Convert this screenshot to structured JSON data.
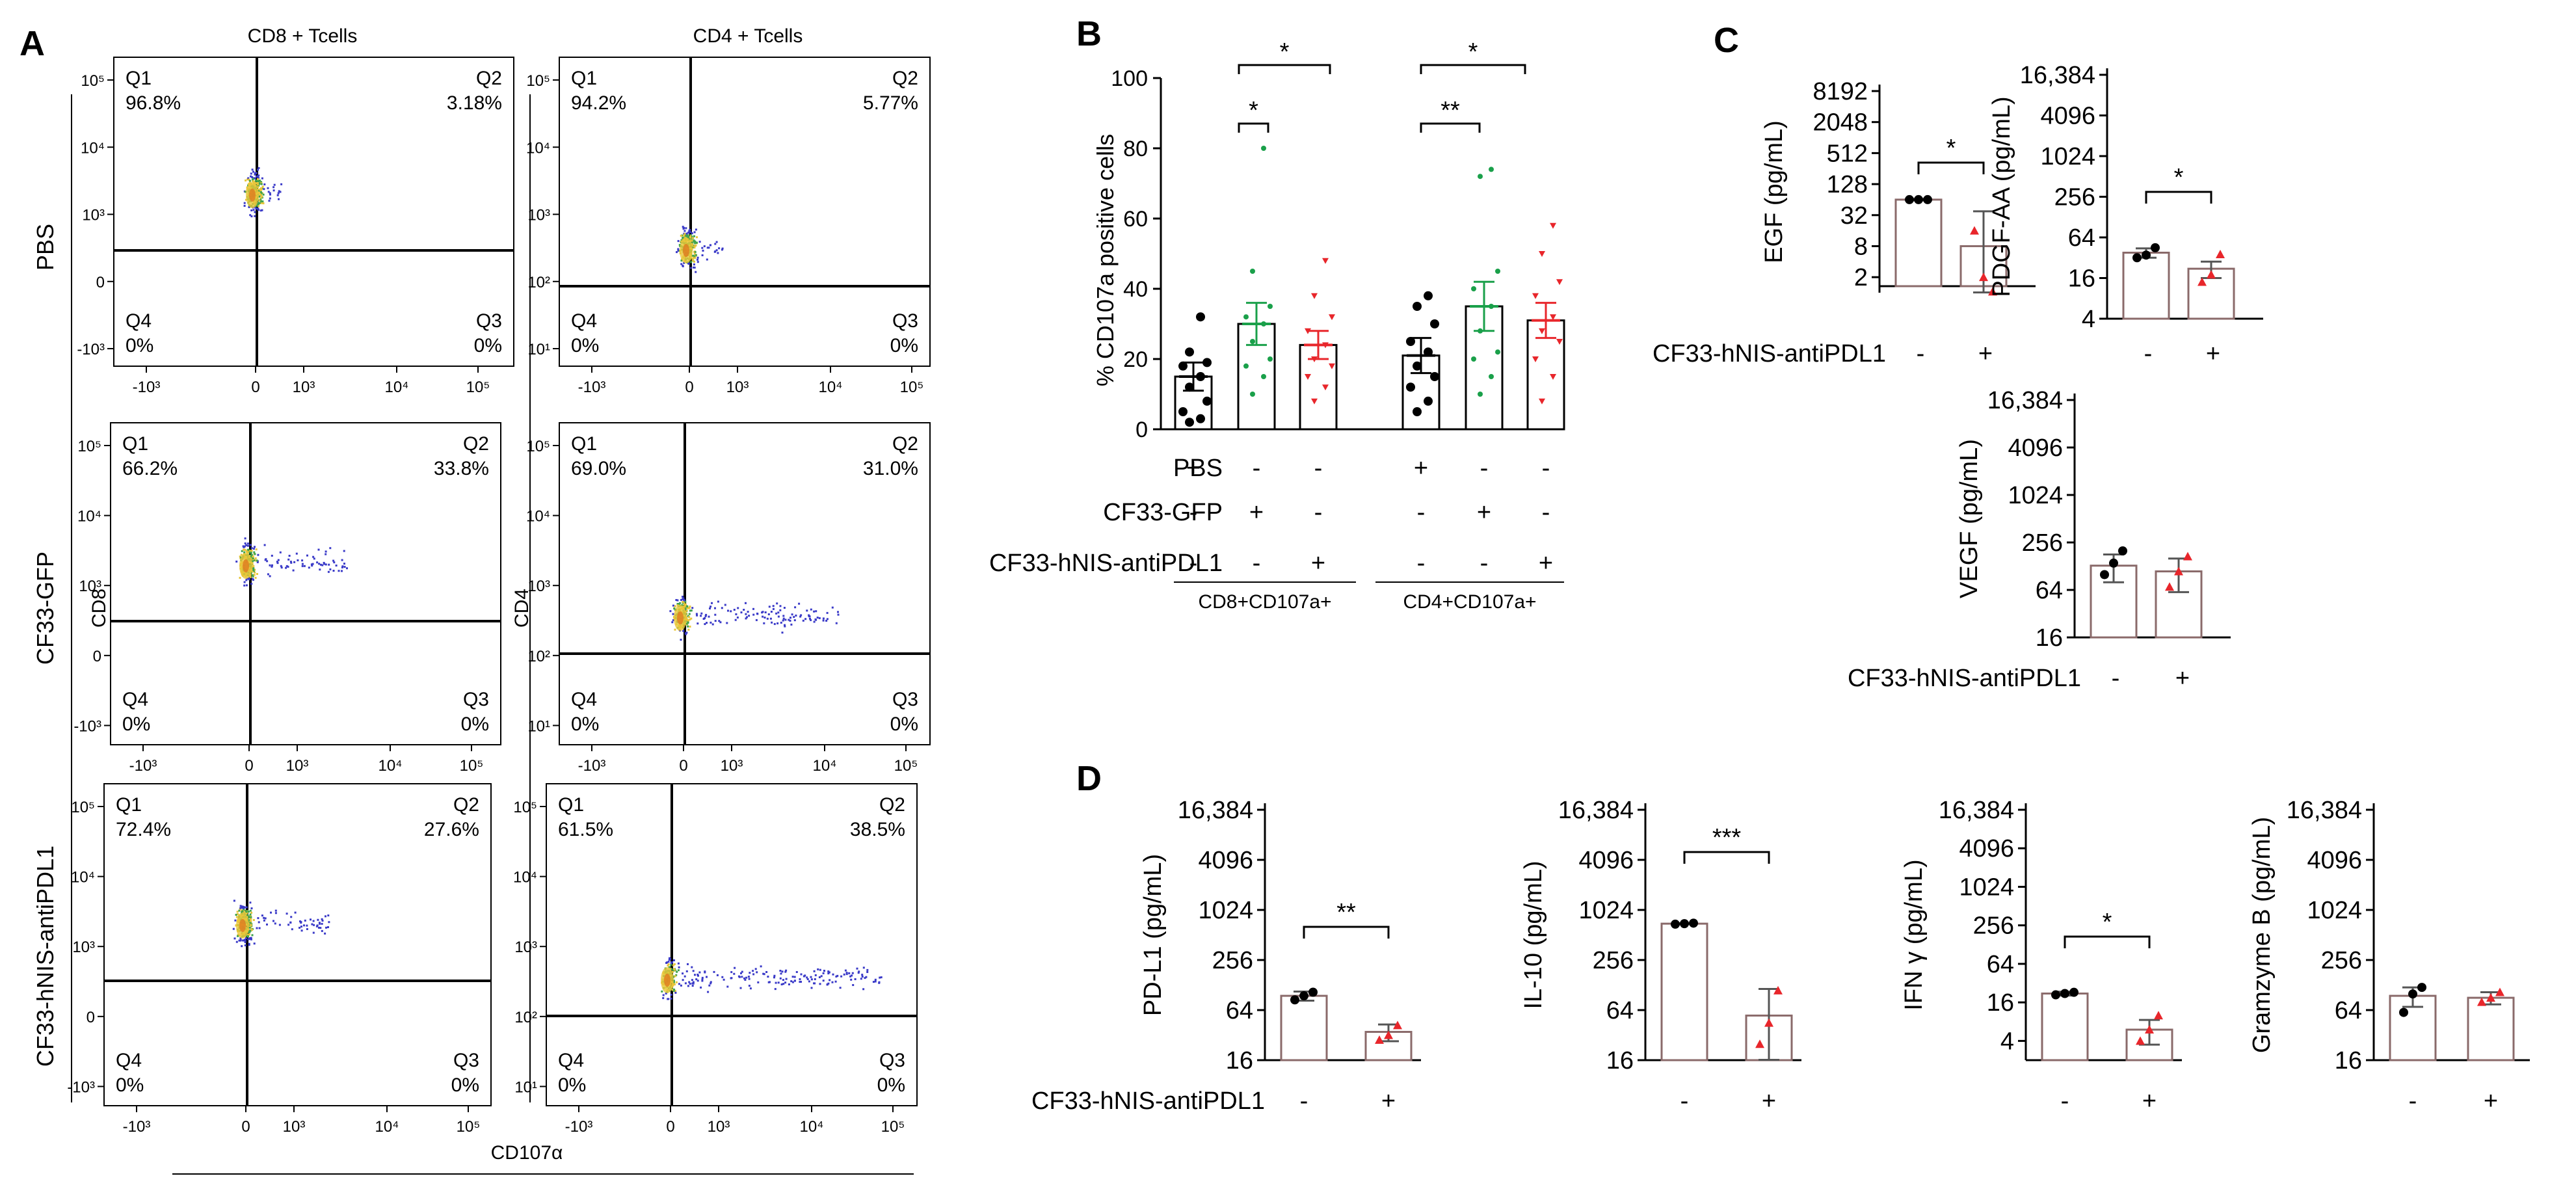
{
  "panels": {
    "A": "A",
    "B": "B",
    "C": "C",
    "D": "D"
  },
  "panel_a": {
    "col_titles": [
      "CD8 + Tcells",
      "CD4 + Tcells"
    ],
    "row_labels": [
      "PBS",
      "CF33-GFP",
      "CF33-hNIS-antiPDL1"
    ],
    "y_labels": [
      "CD8",
      "CD4"
    ],
    "x_label": "CD107α",
    "quadrant_names": [
      "Q1",
      "Q2",
      "Q3",
      "Q4"
    ],
    "cd8_y_ticks": [
      "10⁵",
      "10⁴",
      "10³",
      "0",
      "-10³"
    ],
    "cd4_y_ticks": [
      "10⁵",
      "10⁴",
      "10³",
      "10²",
      "10¹"
    ],
    "cd8_x_ticks": [
      "-10³",
      "0",
      "10³",
      "10⁴",
      "10⁵"
    ],
    "cd4_x_ticks": [
      "-10³",
      "0",
      "10³",
      "10⁴",
      "10⁵"
    ],
    "plots": [
      {
        "name": "cd8-pbs",
        "q1": "96.8%",
        "q2": "3.18%",
        "q3": "0%",
        "q4": "0%"
      },
      {
        "name": "cd4-pbs",
        "q1": "94.2%",
        "q2": "5.77%",
        "q3": "0%",
        "q4": "0%"
      },
      {
        "name": "cd8-cf33gfp",
        "q1": "66.2%",
        "q2": "33.8%",
        "q3": "0%",
        "q4": "0%"
      },
      {
        "name": "cd4-cf33gfp",
        "q1": "69.0%",
        "q2": "31.0%",
        "q3": "0%",
        "q4": "0%"
      },
      {
        "name": "cd8-cf33hnis",
        "q1": "72.4%",
        "q2": "27.6%",
        "q3": "0%",
        "q4": "0%"
      },
      {
        "name": "cd4-cf33hnis",
        "q1": "61.5%",
        "q2": "38.5%",
        "q3": "0%",
        "q4": "0%"
      }
    ]
  },
  "colors": {
    "pbs": "#000000",
    "gfp": "#1aa04a",
    "hnis": "#e8262b",
    "bar_edge": "#8a6a6a",
    "cap": "#555555"
  },
  "panel_b": {
    "y_label": "% CD107a positive cells",
    "row_labels": [
      "PBS",
      "CF33-GFP",
      "CF33-hNIS-antiPDL1"
    ],
    "signs": [
      [
        "+",
        "-",
        "-",
        "+",
        "-",
        "-"
      ],
      [
        "-",
        "+",
        "-",
        "-",
        "+",
        "-"
      ],
      [
        "-",
        "-",
        "+",
        "-",
        "-",
        "+"
      ]
    ],
    "group_labels": [
      "CD8+CD107a+",
      "CD4+CD107a+"
    ],
    "sig": [
      "*",
      "*",
      "*",
      "**"
    ]
  },
  "panel_c": {
    "x_label": "CF33-hNIS-antiPDL1",
    "signs": [
      "-",
      "+"
    ],
    "egf": {
      "y_label": "EGF (pg/mL)",
      "ticks": [
        "8192",
        "2048",
        "512",
        "128",
        "32",
        "8",
        "2"
      ],
      "sig": "*"
    },
    "pdgf": {
      "y_label": "PDGF-AA (pg/mL)",
      "ticks": [
        "16,384",
        "4096",
        "1024",
        "256",
        "64",
        "16",
        "4"
      ],
      "sig": "*"
    },
    "vegf": {
      "y_label": "VEGF (pg/mL)",
      "ticks": [
        "16,384",
        "4096",
        "1024",
        "256",
        "64",
        "16"
      ]
    }
  },
  "panel_d": {
    "x_label": "CF33-hNIS-antiPDL1",
    "signs": [
      "-",
      "+"
    ],
    "pdl1": {
      "y_label": "PD-L1 (pg/mL)",
      "ticks": [
        "16,384",
        "4096",
        "1024",
        "256",
        "64",
        "16"
      ],
      "sig": "**"
    },
    "il10": {
      "y_label": "IL-10 (pg/mL)",
      "ticks": [
        "16,384",
        "4096",
        "1024",
        "256",
        "64",
        "16"
      ],
      "sig": "***"
    },
    "ifng": {
      "y_label": "IFN γ (pg/mL)",
      "ticks": [
        "16,384",
        "4096",
        "1024",
        "256",
        "64",
        "16",
        "4"
      ],
      "sig": "*"
    },
    "gzmb": {
      "y_label": "Gramzyme B (pg/mL)",
      "ticks": [
        "16,384",
        "4096",
        "1024",
        "256",
        "64",
        "16"
      ]
    }
  },
  "chart_data": [
    {
      "type": "bar",
      "title": "% CD107a positive cells",
      "ylabel": "% CD107a positive cells",
      "ylim": [
        0,
        100
      ],
      "y_ticks": [
        0,
        20,
        40,
        60,
        80,
        100
      ],
      "categories": [
        "CD8 PBS",
        "CD8 CF33-GFP",
        "CD8 CF33-hNIS-antiPDL1",
        "CD4 PBS",
        "CD4 CF33-GFP",
        "CD4 CF33-hNIS-antiPDL1"
      ],
      "values": [
        15,
        30,
        24,
        21,
        35,
        31
      ],
      "errors": [
        4,
        6,
        4,
        5,
        7,
        5
      ],
      "points": [
        [
          2,
          3,
          5,
          8,
          12,
          15,
          18,
          19,
          22,
          32
        ],
        [
          10,
          15,
          18,
          20,
          25,
          30,
          32,
          35,
          45,
          80
        ],
        [
          8,
          12,
          15,
          18,
          20,
          24,
          28,
          32,
          38,
          48
        ],
        [
          5,
          8,
          12,
          15,
          18,
          22,
          25,
          30,
          35,
          38
        ],
        [
          10,
          15,
          20,
          22,
          28,
          35,
          40,
          45,
          72,
          74
        ],
        [
          8,
          15,
          20,
          25,
          28,
          32,
          38,
          42,
          50,
          58
        ]
      ],
      "point_colors": [
        "pbs",
        "gfp",
        "hnis",
        "pbs",
        "gfp",
        "hnis"
      ]
    },
    {
      "type": "bar",
      "title": "EGF",
      "ylabel": "EGF (pg/mL)",
      "scale": "log2",
      "ylim": [
        1,
        8192
      ],
      "categories": [
        "-",
        "+"
      ],
      "values": [
        64,
        8
      ],
      "errors": [
        2,
        30
      ],
      "points": [
        [
          64,
          64,
          64
        ],
        [
          16,
          2,
          1
        ]
      ]
    },
    {
      "type": "bar",
      "title": "PDGF-AA",
      "ylabel": "PDGF-AA (pg/mL)",
      "scale": "log2",
      "ylim": [
        4,
        16384
      ],
      "categories": [
        "-",
        "+"
      ],
      "values": [
        38,
        22
      ],
      "errors": [
        6,
        6
      ],
      "points": [
        [
          32,
          35,
          45
        ],
        [
          14,
          18,
          36
        ]
      ]
    },
    {
      "type": "bar",
      "title": "VEGF",
      "ylabel": "VEGF (pg/mL)",
      "scale": "log2",
      "ylim": [
        16,
        16384
      ],
      "categories": [
        "-",
        "+"
      ],
      "values": [
        130,
        110
      ],
      "errors": [
        50,
        50
      ],
      "points": [
        [
          100,
          140,
          200
        ],
        [
          70,
          110,
          170
        ]
      ]
    },
    {
      "type": "bar",
      "title": "PD-L1",
      "ylabel": "PD-L1 (pg/mL)",
      "scale": "log2",
      "ylim": [
        16,
        16384
      ],
      "categories": [
        "-",
        "+"
      ],
      "values": [
        95,
        35
      ],
      "errors": [
        12,
        8
      ],
      "points": [
        [
          85,
          95,
          105
        ],
        [
          28,
          32,
          42
        ]
      ]
    },
    {
      "type": "bar",
      "title": "IL-10",
      "ylabel": "IL-10 (pg/mL)",
      "scale": "log2",
      "ylim": [
        16,
        16384
      ],
      "categories": [
        "-",
        "+"
      ],
      "values": [
        700,
        55
      ],
      "errors": [
        10,
        60
      ],
      "points": [
        [
          690,
          700,
          710
        ],
        [
          25,
          45,
          110
        ]
      ]
    },
    {
      "type": "bar",
      "title": "IFN γ",
      "ylabel": "IFN γ (pg/mL)",
      "scale": "log2",
      "ylim": [
        2,
        16384
      ],
      "categories": [
        "-",
        "+"
      ],
      "values": [
        22,
        6
      ],
      "errors": [
        1.5,
        2.5
      ],
      "points": [
        [
          21,
          22,
          23
        ],
        [
          4,
          6,
          10
        ]
      ]
    },
    {
      "type": "bar",
      "title": "Gramzyme B",
      "ylabel": "Gramzyme B (pg/mL)",
      "scale": "log2",
      "ylim": [
        16,
        16384
      ],
      "categories": [
        "-",
        "+"
      ],
      "values": [
        95,
        90
      ],
      "errors": [
        25,
        15
      ],
      "points": [
        [
          60,
          100,
          120
        ],
        [
          80,
          90,
          105
        ]
      ]
    }
  ]
}
